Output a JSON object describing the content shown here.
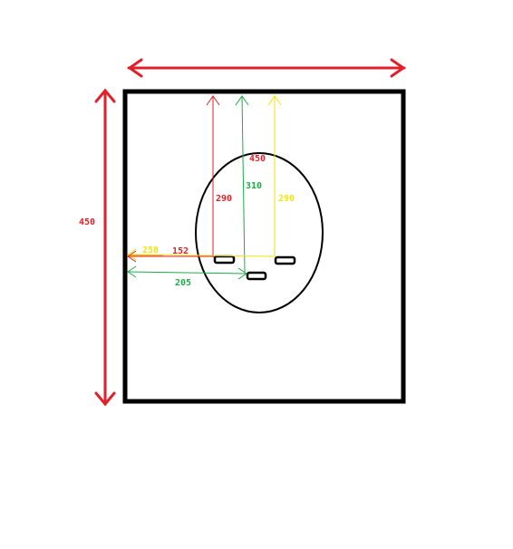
{
  "labels": {
    "outer_height": "450",
    "inner_width": "450",
    "red_vertical": "290",
    "green_vertical": "310",
    "yellow_vertical": "290",
    "yellow_horizontal": "258",
    "red_horizontal": "152",
    "green_horizontal": "205"
  },
  "colors": {
    "red": "#e0212a",
    "green": "#1faa4a",
    "yellow": "#f2e40c",
    "orange": "#f29a1f",
    "black": "#000000"
  }
}
